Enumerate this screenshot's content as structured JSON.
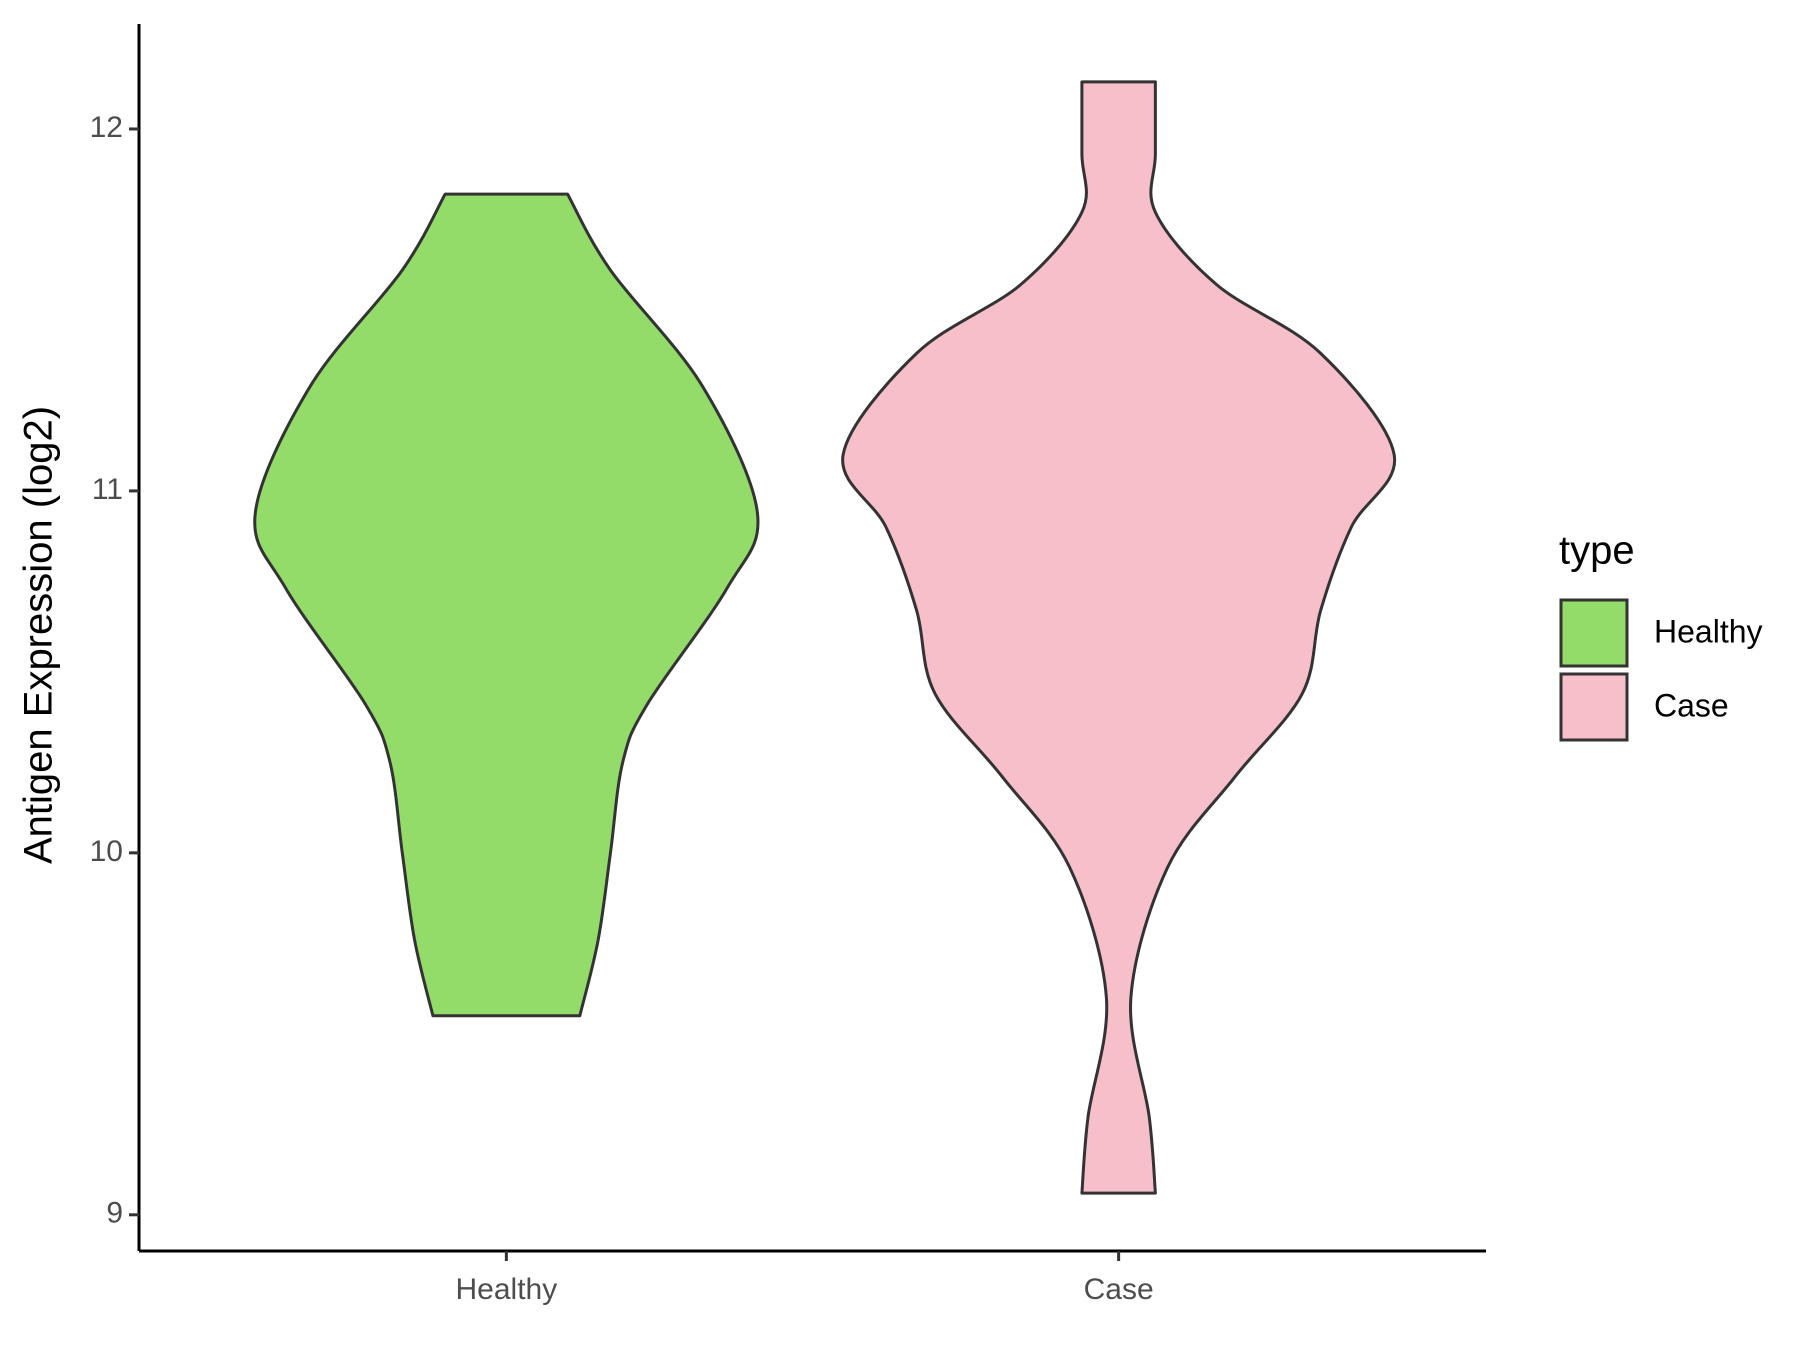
{
  "chart_data": {
    "type": "violin",
    "y_label": "Antigen Expression (log2)",
    "categories": [
      "Healthy",
      "Case"
    ],
    "legend_title": "type",
    "legend_position": "right",
    "ylim": [
      8.9,
      12.29
    ],
    "yticks": [
      9,
      10,
      11,
      12
    ],
    "series": [
      {
        "name": "Healthy",
        "color": "#93dc6a",
        "values": [
          11.82,
          11.61,
          11.29,
          10.94,
          10.73,
          10.41,
          10.25,
          10.0,
          9.76,
          9.55
        ],
        "widths": [
          0.1,
          0.17,
          0.32,
          0.41,
          0.36,
          0.23,
          0.19,
          0.17,
          0.15,
          0.12
        ]
      },
      {
        "name": "Case",
        "color": "#f7bfca",
        "values": [
          12.13,
          11.93,
          11.77,
          11.57,
          11.38,
          11.1,
          10.9,
          10.67,
          10.44,
          10.21,
          9.96,
          9.6,
          9.27,
          9.06
        ],
        "widths": [
          0.06,
          0.06,
          0.06,
          0.16,
          0.33,
          0.45,
          0.38,
          0.33,
          0.3,
          0.19,
          0.08,
          0.02,
          0.05,
          0.06
        ]
      }
    ]
  }
}
